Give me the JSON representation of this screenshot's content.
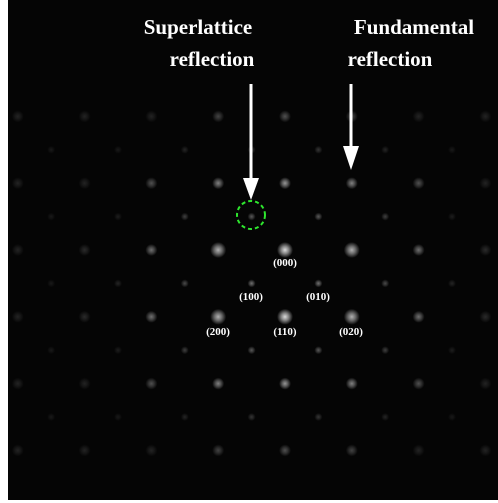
{
  "annotations": {
    "superlattice": [
      "Superlattice",
      "reflection"
    ],
    "fundamental": [
      "Fundamental",
      "reflection"
    ]
  },
  "spot_labels": [
    "(000)",
    "(100)",
    "(010)",
    "(200)",
    "(110)",
    "(020)"
  ]
}
